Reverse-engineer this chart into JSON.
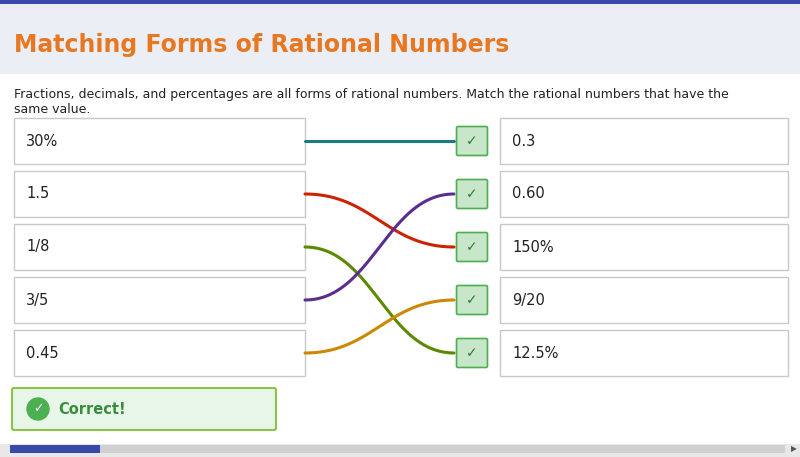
{
  "title": "Matching Forms of Rational Numbers",
  "subtitle_line1": "Fractions, decimals, and percentages are all forms of rational numbers. Match the rational numbers that have the",
  "subtitle_line2": "same value.",
  "title_color": "#E87722",
  "bg_color": "#FFFFFF",
  "header_bg": "#ECEEF5",
  "outer_bg": "#D8DBE8",
  "left_labels": [
    "30%",
    "1.5",
    "1/8",
    "3/5",
    "0.45"
  ],
  "right_labels": [
    "0.3",
    "0.60",
    "150%",
    "9/20",
    "12.5%"
  ],
  "connections": [
    {
      "from": 0,
      "to": 0,
      "color": "#1A7A8A"
    },
    {
      "from": 1,
      "to": 2,
      "color": "#CC2200"
    },
    {
      "from": 2,
      "to": 4,
      "color": "#5A8A00"
    },
    {
      "from": 3,
      "to": 1,
      "color": "#5B2D8E"
    },
    {
      "from": 4,
      "to": 3,
      "color": "#CC8800"
    }
  ],
  "check_bg": "#C8E6C9",
  "check_border": "#4CAF50",
  "check_color": "#2E7D32",
  "correct_bg": "#E8F5E9",
  "correct_border": "#8BC34A",
  "box_border": "#C8C8C8",
  "box_fill": "#FFFFFF",
  "scrollbar_bg": "#E0E0E0",
  "scrollbar_color": "#3949AB",
  "fig_width": 8.0,
  "fig_height": 4.57
}
